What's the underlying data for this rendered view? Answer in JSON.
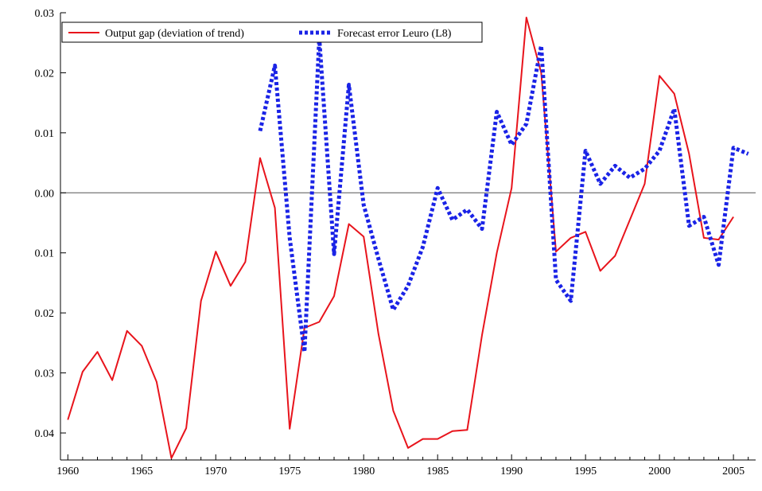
{
  "chart_data": {
    "type": "line",
    "title": "",
    "xlabel": "",
    "ylabel": "",
    "xlim": [
      1959.5,
      2006.5
    ],
    "ylim": [
      -0.0445,
      0.03
    ],
    "x_ticks": [
      1960,
      1965,
      1970,
      1975,
      1980,
      1985,
      1990,
      1995,
      2000,
      2005
    ],
    "y_ticks": [
      {
        "value": 0.03,
        "label": "0.03"
      },
      {
        "value": 0.02,
        "label": "0.02"
      },
      {
        "value": 0.01,
        "label": "0.01"
      },
      {
        "value": 0.0,
        "label": "0.00"
      },
      {
        "value": -0.01,
        "label": "0.01"
      },
      {
        "value": -0.02,
        "label": "0.02"
      },
      {
        "value": -0.03,
        "label": "0.03"
      },
      {
        "value": -0.04,
        "label": "0.04"
      }
    ],
    "zero_line": true,
    "grid": false,
    "legend_position": "top-left",
    "series": [
      {
        "name": "Output gap (deviation of trend)",
        "color": "#e8141c",
        "style": "solid",
        "x": [
          1960,
          1961,
          1962,
          1963,
          1964,
          1965,
          1966,
          1967,
          1968,
          1969,
          1970,
          1971,
          1972,
          1973,
          1974,
          1975,
          1976,
          1977,
          1978,
          1979,
          1980,
          1981,
          1982,
          1983,
          1984,
          1985,
          1986,
          1987,
          1988,
          1989,
          1990,
          1991,
          1992,
          1993,
          1994,
          1995,
          1996,
          1997,
          1998,
          1999,
          2000,
          2001,
          2002,
          2003,
          2004,
          2005
        ],
        "y": [
          -0.0378,
          -0.0298,
          -0.0265,
          -0.0312,
          -0.023,
          -0.0255,
          -0.0315,
          -0.0442,
          -0.0392,
          -0.018,
          -0.0098,
          -0.0155,
          -0.0115,
          0.0058,
          -0.0025,
          -0.0393,
          -0.0225,
          -0.0215,
          -0.0172,
          -0.0052,
          -0.0073,
          -0.0235,
          -0.0363,
          -0.0425,
          -0.041,
          -0.041,
          -0.0397,
          -0.0395,
          -0.0237,
          -0.01,
          0.0008,
          0.0292,
          0.02,
          -0.0098,
          -0.0075,
          -0.0065,
          -0.013,
          -0.0105,
          -0.0045,
          0.0015,
          0.0195,
          0.0165,
          0.0065,
          -0.0075,
          -0.0078,
          -0.004
        ]
      },
      {
        "name": "Forecast error Leuro (L8)",
        "color": "#1a23e6",
        "style": "dotted",
        "x": [
          1973,
          1974,
          1975,
          1976,
          1977,
          1978,
          1979,
          1980,
          1981,
          1982,
          1983,
          1984,
          1985,
          1986,
          1987,
          1988,
          1989,
          1990,
          1991,
          1992,
          1993,
          1994,
          1995,
          1996,
          1997,
          1998,
          1999,
          2000,
          2001,
          2002,
          2003,
          2004,
          2005,
          2006
        ],
        "y": [
          0.0103,
          0.0212,
          -0.0075,
          -0.0265,
          0.0258,
          -0.0102,
          0.018,
          -0.002,
          -0.011,
          -0.0195,
          -0.0155,
          -0.009,
          0.0008,
          -0.0045,
          -0.0028,
          -0.006,
          0.0135,
          0.008,
          0.0115,
          0.0245,
          -0.0145,
          -0.018,
          0.007,
          0.0015,
          0.0045,
          0.0025,
          0.004,
          0.007,
          0.014,
          -0.0055,
          -0.004,
          -0.012,
          0.0075,
          0.0065
        ]
      }
    ]
  },
  "colors": {
    "axis": "#000000",
    "zero_line": "#555555"
  }
}
